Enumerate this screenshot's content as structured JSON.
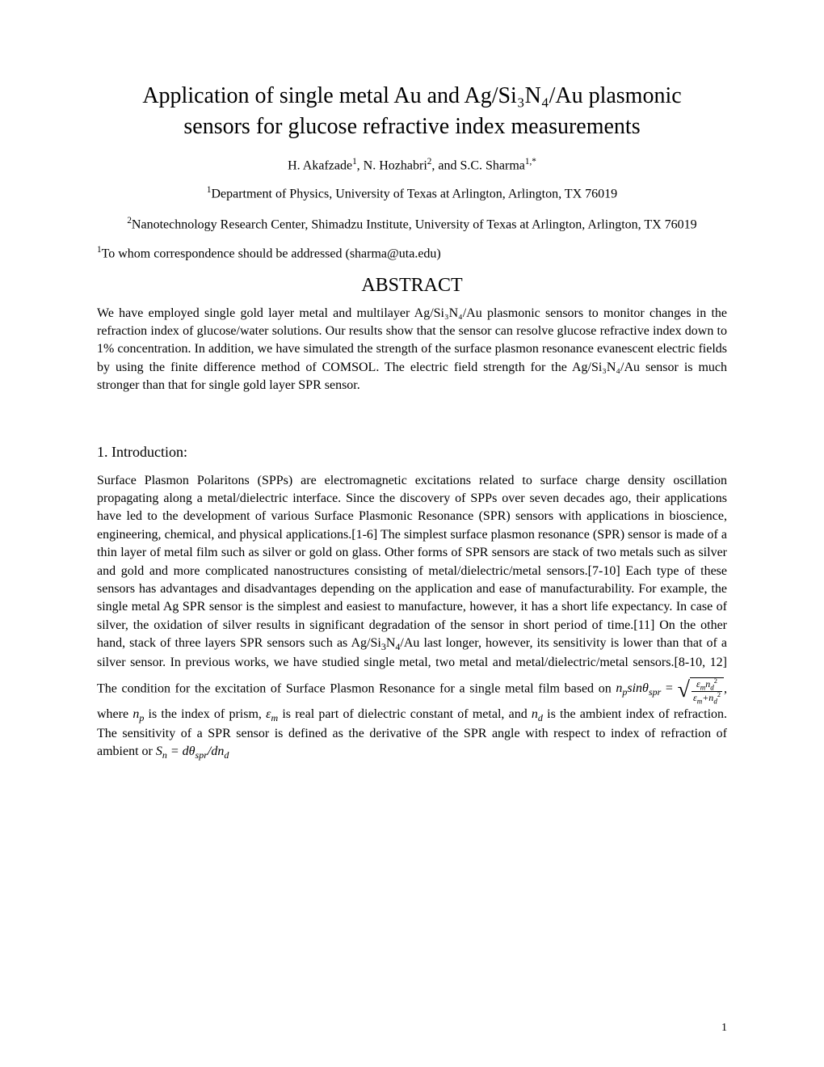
{
  "title_line1": "Application of single metal Au and Ag/Si₃N₄/Au plasmonic",
  "title_line2": "sensors for glucose refractive index measurements",
  "authors_html": "H.  Akafzade<sup>1</sup>, N. Hozhabri<sup>2</sup>, and S.C. Sharma<sup>1,*</sup>",
  "affiliation1_html": "<sup>1</sup>Department of Physics, University of Texas at Arlington, Arlington, TX 76019",
  "affiliation2_html": "<sup>2</sup>Nanotechnology Research Center, Shimadzu Institute, University of Texas at Arlington, Arlington, TX 76019",
  "correspondence_html": "<sup>1</sup>To whom correspondence should be addressed (sharma@uta.edu)",
  "abstract_heading": "ABSTRACT",
  "abstract_text": "We have employed single gold layer metal and multilayer Ag/Si₃N₄/Au plasmonic sensors to monitor changes in the refraction index of glucose/water solutions. Our results show that the sensor can resolve glucose refractive index down to 1% concentration. In addition, we have simulated the strength of the surface plasmon resonance evanescent electric fields by using the finite difference method of COMSOL. The electric field strength for the Ag/Si₃N₄/Au sensor is much stronger than that for single gold layer SPR sensor.",
  "section1_heading": "1. Introduction:",
  "section1_html": "Surface Plasmon Polaritons (SPPs) are electromagnetic excitations related to surface charge density oscillation propagating along a metal/dielectric interface. Since the discovery of SPPs over seven decades ago, their applications have led to the development of various Surface Plasmonic Resonance (SPR) sensors with applications in bioscience, engineering, chemical, and physical applications.[1-6] The simplest surface plasmon resonance (SPR) sensor is made of a thin layer of metal film such as silver or gold on glass. Other forms of SPR sensors are stack of two metals such as silver and gold and more complicated nanostructures consisting of metal/dielectric/metal sensors.[7-10] Each type of these sensors has advantages and disadvantages depending on the application and ease of manufacturability. For example, the single metal Ag SPR sensor is the simplest and easiest to manufacture, however, it has a short life expectancy. In case of silver, the oxidation of silver results in significant degradation of the sensor in short period of time.[11] On the other hand, stack of three layers SPR sensors such as Ag/Si<sub>3</sub>N<sub>4</sub>/Au last longer, however, its sensitivity is lower than that of a silver sensor. In previous works, we have studied single metal, two metal and metal/dielectric/metal sensors.[8-10, 12] The condition for the excitation of Surface Plasmon Resonance for a single metal film based on <span class=\"formula\"><span class=\"italic\">n<sub>p</sub>sinθ<sub>spr</sub></span> = <span class=\"sqrt\"><span class=\"sqrt-sign\">√</span><span class=\"sqrt-body\"><span class=\"frac\"><span class=\"num\"><span class=\"italic\">ε<sub>m</sub>n<sub>d</sub></span><sup>2</sup></span><span class=\"den\"><span class=\"italic\">ε<sub>m</sub>+n<sub>d</sub></span><sup>2</sup></span></span></span></span></span>, where <span class=\"italic\">n<sub>p</sub></span> is the index of prism, <span class=\"italic\">ε<sub>m</sub></span> is real part of dielectric constant of metal, and <span class=\"italic\">n<sub>d</sub></span> is the ambient index of refraction. The sensitivity of a SPR sensor is defined as the derivative of the SPR angle with respect to index of refraction of ambient or <span class=\"formula italic\">S<sub>n</sub> = dθ<sub>spr</sub>/dn<sub>d</sub></span>",
  "page_number": "1"
}
